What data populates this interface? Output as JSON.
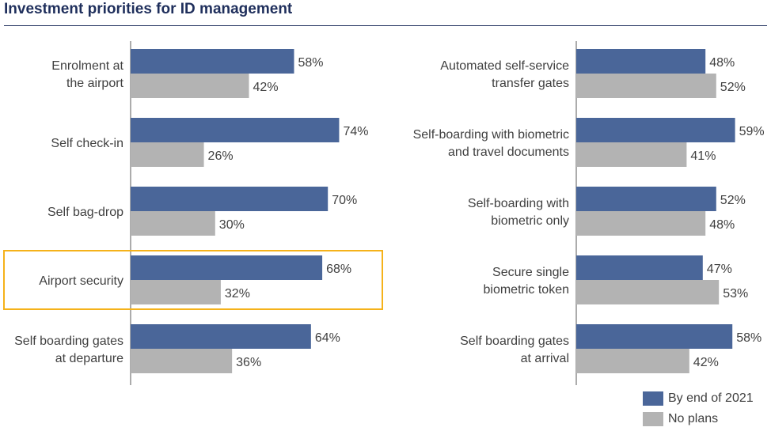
{
  "title": "Investment priorities for ID management",
  "legend": {
    "series": [
      {
        "name": "By end of 2021",
        "color": "#4a6699"
      },
      {
        "name": "No plans",
        "color": "#b3b3b3"
      }
    ]
  },
  "highlight": {
    "category": "Airport security",
    "color": "#f5b21a"
  },
  "chart_data": [
    {
      "type": "bar",
      "orientation": "horizontal",
      "categories": [
        [
          "Enrolment at",
          "the airport"
        ],
        [
          "Self check-in"
        ],
        [
          "Self bag-drop"
        ],
        [
          "Airport security"
        ],
        [
          "Self boarding gates",
          "at departure"
        ]
      ],
      "series": [
        {
          "name": "By end of 2021",
          "values": [
            58,
            74,
            70,
            68,
            64
          ],
          "labels": [
            "58%",
            "74%",
            "70%",
            "68%",
            "64%"
          ]
        },
        {
          "name": "No plans",
          "values": [
            42,
            26,
            30,
            32,
            36
          ],
          "labels": [
            "42%",
            "26%",
            "30%",
            "32%",
            "36%"
          ]
        }
      ],
      "xlim": [
        0,
        100
      ],
      "unit": "%"
    },
    {
      "type": "bar",
      "orientation": "horizontal",
      "categories": [
        [
          "Automated self-service",
          "transfer gates"
        ],
        [
          "Self-boarding with biometric",
          "and travel documents"
        ],
        [
          "Self-boarding with",
          "biometric only"
        ],
        [
          "Secure single",
          "biometric token"
        ],
        [
          "Self boarding gates",
          "at arrival"
        ]
      ],
      "series": [
        {
          "name": "By end of 2021",
          "values": [
            48,
            59,
            52,
            47,
            58
          ],
          "labels": [
            "48%",
            "59%",
            "52%",
            "47%",
            "58%"
          ]
        },
        {
          "name": "No plans",
          "values": [
            52,
            41,
            48,
            53,
            42
          ],
          "labels": [
            "52%",
            "41%",
            "48%",
            "53%",
            "42%"
          ]
        }
      ],
      "xlim": [
        0,
        100
      ],
      "unit": "%"
    }
  ]
}
